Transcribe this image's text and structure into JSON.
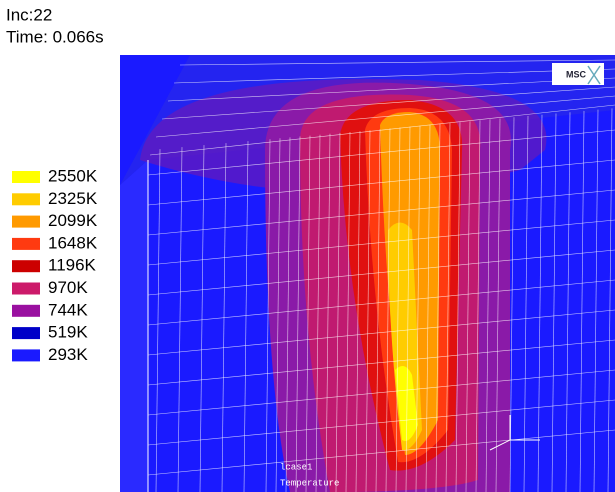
{
  "header": {
    "increment": "Inc:22",
    "time": "Time: 0.066s"
  },
  "legend": {
    "entries": [
      {
        "label": "2550K",
        "color": "#ffff00"
      },
      {
        "label": "2325K",
        "color": "#ffcc00"
      },
      {
        "label": "2099K",
        "color": "#ff9a00"
      },
      {
        "label": "1648K",
        "color": "#ff3a10"
      },
      {
        "label": "1196K",
        "color": "#cc0000"
      },
      {
        "label": "970K",
        "color": "#cc1a6a"
      },
      {
        "label": "744K",
        "color": "#9a10a0"
      },
      {
        "label": "519K",
        "color": "#0000c8"
      },
      {
        "label": "293K",
        "color": "#1a1aff"
      }
    ]
  },
  "viewport": {
    "logo": "MSC",
    "case": "lcase1",
    "variable": "Temperature"
  }
}
